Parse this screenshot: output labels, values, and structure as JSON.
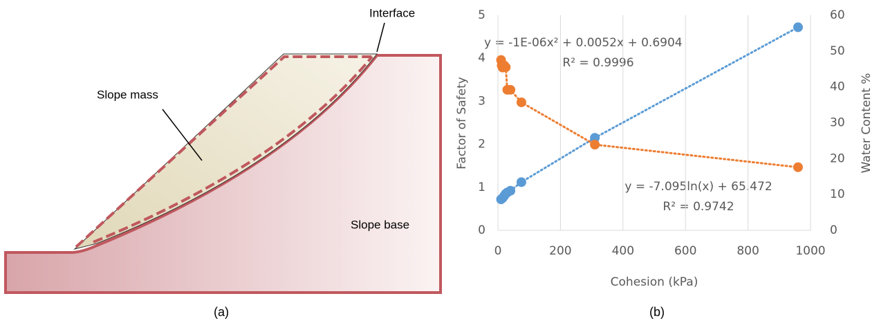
{
  "diagram": {
    "labels": {
      "slope_mass": "Slope mass",
      "interface": "Interface",
      "slope_base": "Slope base"
    },
    "caption": "(a)"
  },
  "caption_b": "(b)",
  "chart_data": {
    "type": "scatter",
    "xlabel": "Cohesion (kPa)",
    "ylabel": "Factor of Safety",
    "y2label": "Water Content %",
    "xlim": [
      0,
      1000
    ],
    "xticks": [
      0,
      200,
      400,
      600,
      800,
      1000
    ],
    "ylim": [
      0,
      5
    ],
    "yticks": [
      0,
      1,
      2,
      3,
      4,
      5
    ],
    "y2lim": [
      0,
      60
    ],
    "y2ticks": [
      0,
      10,
      20,
      30,
      40,
      50,
      60
    ],
    "grid": "x",
    "series": [
      {
        "color": "#5b9bd5",
        "x": [
          10,
          15,
          20,
          25,
          30,
          40,
          75,
          310,
          960
        ],
        "values": [
          0.72,
          0.75,
          0.8,
          0.85,
          0.88,
          0.92,
          1.12,
          2.15,
          4.72
        ]
      },
      {
        "color": "#ed7d31",
        "axis": "y2",
        "x": [
          10,
          12,
          15,
          20,
          25,
          30,
          40,
          75,
          310,
          960
        ],
        "values": [
          47.5,
          46,
          45.4,
          46,
          45.5,
          39.2,
          39.2,
          35.7,
          23.9,
          17.6
        ]
      }
    ],
    "annotations": [
      "y = -1E-06x² + 0.0052x + 0.6904",
      "R² = 0.9996",
      "y = -7.095ln(x) + 65.472",
      "R² = 0.9742"
    ]
  }
}
